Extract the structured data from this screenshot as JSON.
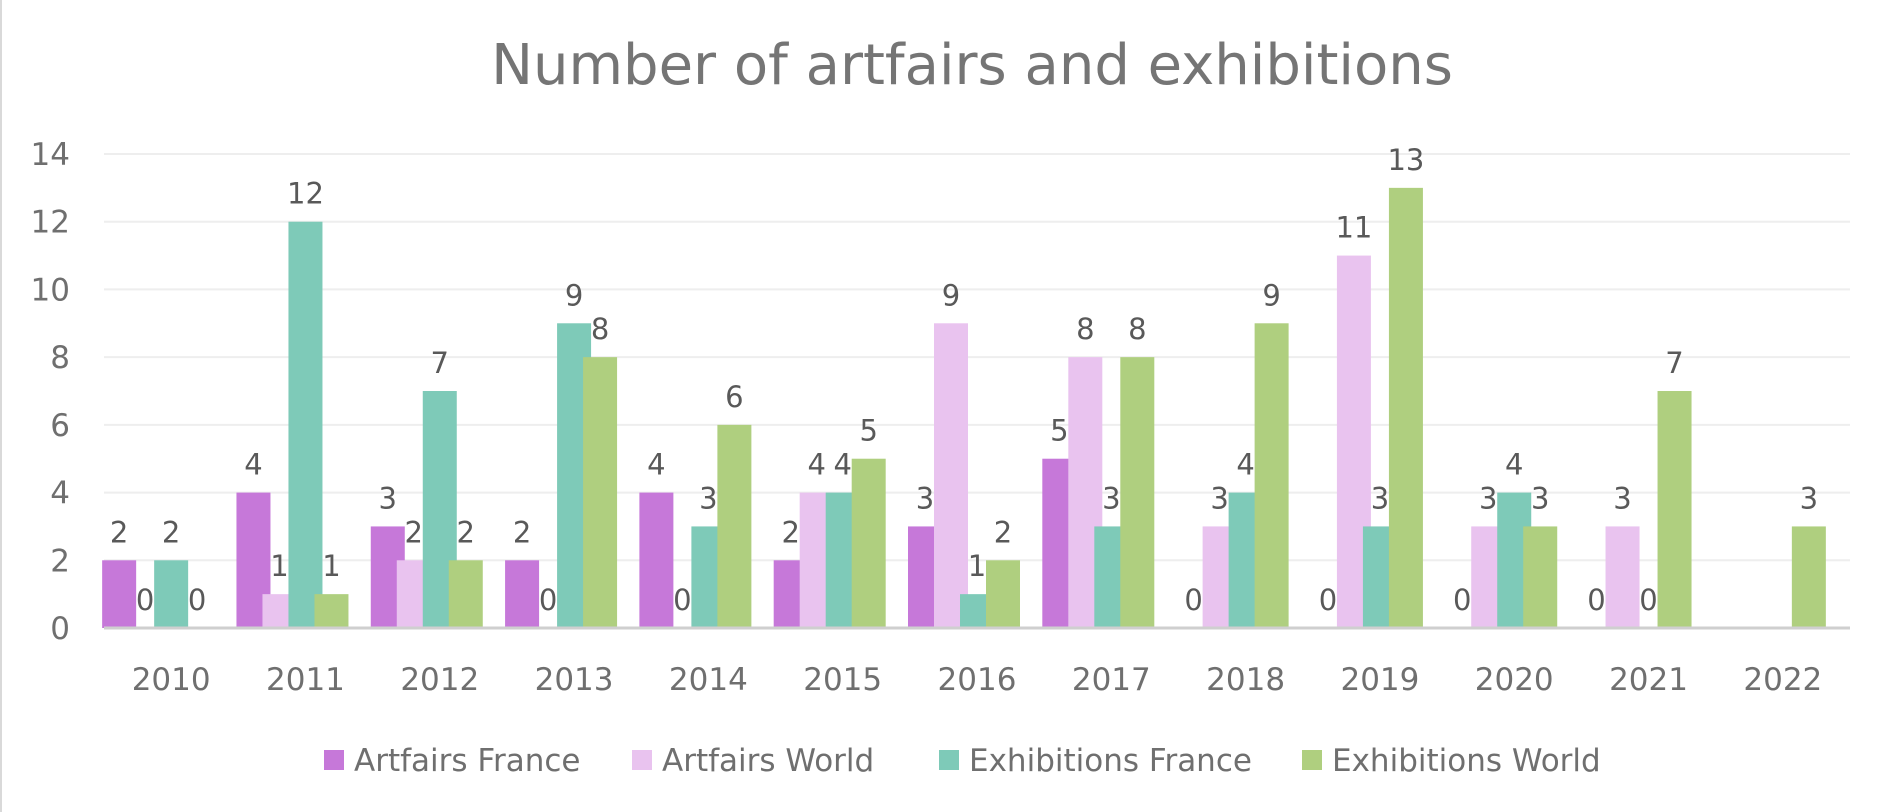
{
  "chart_data": {
    "type": "bar",
    "title": "Number of artfairs and exhibitions",
    "categories": [
      "2010",
      "2011",
      "2012",
      "2013",
      "2014",
      "2015",
      "2016",
      "2017",
      "2018",
      "2019",
      "2020",
      "2021",
      "2022"
    ],
    "series": [
      {
        "name": "Artfairs France",
        "color": "#c678d9",
        "values": [
          2,
          4,
          3,
          2,
          4,
          2,
          3,
          5,
          0,
          0,
          0,
          0,
          null
        ],
        "labels": [
          "2",
          "4",
          "3",
          "2",
          "4",
          "2",
          "3",
          "5",
          "0",
          "0",
          "0",
          "0",
          ""
        ]
      },
      {
        "name": "Artfairs World",
        "color": "#e9c3ef",
        "values": [
          0,
          1,
          2,
          0,
          0,
          4,
          9,
          8,
          3,
          11,
          3,
          3,
          null
        ],
        "labels": [
          "0",
          "1",
          "2",
          "0",
          "0",
          "4",
          "9",
          "8",
          "3",
          "11",
          "3",
          "3",
          ""
        ]
      },
      {
        "name": "Exhibitions France",
        "color": "#7ecab8",
        "values": [
          2,
          12,
          7,
          9,
          3,
          4,
          1,
          3,
          4,
          3,
          4,
          0,
          null
        ],
        "labels": [
          "2",
          "12",
          "7",
          "9",
          "3",
          "4",
          "1",
          "3",
          "4",
          "3",
          "4",
          "0",
          ""
        ]
      },
      {
        "name": "Exhibitions World",
        "color": "#afcf7f",
        "values": [
          0,
          1,
          2,
          8,
          6,
          5,
          2,
          8,
          9,
          13,
          3,
          7,
          3
        ],
        "labels": [
          "0",
          "1",
          "2",
          "8",
          "6",
          "5",
          "2",
          "8",
          "9",
          "13",
          "3",
          "7",
          "3"
        ]
      }
    ],
    "ylim": [
      0,
      14
    ],
    "yticks": [
      "0",
      "2",
      "4",
      "6",
      "8",
      "10",
      "12",
      "14"
    ],
    "xlabel": "",
    "ylabel": "",
    "grid": "horizontal",
    "legend_position": "bottom"
  }
}
